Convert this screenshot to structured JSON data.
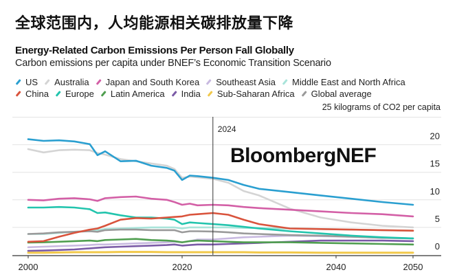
{
  "header": {
    "cn_title": "全球范围内，人均能源相关碳排放量下降",
    "title": "Energy-Related Carbon Emissions Per Person Fall Globally",
    "subtitle": "Carbon emissions per capita under BNEF’s Economic Transition Scenario",
    "unit_label": "25 kilograms of CO2 per capita",
    "brand": "BloombergNEF"
  },
  "chart_data": {
    "type": "line",
    "title": "Energy-Related Carbon Emissions Per Person Fall Globally",
    "subtitle": "Carbon emissions per capita under BNEF’s Economic Transition Scenario",
    "xlabel": "",
    "ylabel": "kilograms of CO2 per capita",
    "xlim": [
      1997,
      2053
    ],
    "ylim": [
      0,
      25
    ],
    "x_ticks": [
      2000,
      2020,
      2040,
      2050
    ],
    "x_tick_labels": [
      "2000",
      "2020",
      "2040",
      "2050"
    ],
    "y_ticks": [
      0,
      5,
      10,
      15,
      20,
      25
    ],
    "y_tick_labels": [
      "0",
      "5",
      "10",
      "15",
      "20",
      "25 kilograms of CO2 per capita"
    ],
    "y_axis_side": "right",
    "grid": true,
    "legend_position": "top",
    "annotations": [
      {
        "x": 2024,
        "label": "2024",
        "type": "vertical-line"
      }
    ],
    "x": [
      2000,
      2002,
      2004,
      2006,
      2008,
      2009,
      2010,
      2012,
      2014,
      2016,
      2018,
      2019,
      2020,
      2021,
      2022,
      2024,
      2026,
      2028,
      2030,
      2034,
      2038,
      2042,
      2046,
      2050
    ],
    "series": [
      {
        "name": "US",
        "color": "#2a9fd0",
        "values": [
          21.0,
          20.7,
          20.8,
          20.6,
          20.1,
          18.1,
          18.8,
          17.0,
          17.1,
          16.2,
          15.8,
          15.3,
          13.6,
          14.4,
          14.3,
          14.0,
          13.6,
          12.7,
          12.0,
          11.4,
          10.8,
          10.2,
          9.6,
          9.1
        ]
      },
      {
        "name": "Australia",
        "color": "#d4d4d4",
        "values": [
          19.2,
          18.6,
          19.0,
          19.1,
          19.0,
          18.5,
          18.2,
          17.4,
          17.0,
          16.6,
          16.2,
          15.6,
          14.0,
          14.2,
          14.1,
          13.8,
          13.1,
          11.6,
          10.8,
          8.4,
          6.8,
          5.9,
          5.3,
          5.0
        ]
      },
      {
        "name": "Japan and South Korea",
        "color": "#d35fa6",
        "values": [
          10.0,
          9.9,
          10.2,
          10.3,
          10.1,
          9.8,
          10.3,
          10.5,
          10.6,
          10.2,
          10.0,
          9.6,
          9.1,
          9.3,
          9.0,
          9.1,
          9.0,
          8.7,
          8.5,
          8.2,
          7.9,
          7.6,
          7.4,
          7.0
        ]
      },
      {
        "name": "Southeast Asia",
        "color": "#c8b9e0",
        "values": [
          1.4,
          1.5,
          1.6,
          1.7,
          1.8,
          1.9,
          1.9,
          2.0,
          2.1,
          2.2,
          2.3,
          2.4,
          2.3,
          2.5,
          2.8,
          2.8,
          3.0,
          3.2,
          3.3,
          3.5,
          3.4,
          3.3,
          3.1,
          3.0
        ]
      },
      {
        "name": "Middle East and North Africa",
        "color": "#a9e4da",
        "values": [
          3.8,
          3.8,
          4.0,
          4.2,
          4.4,
          4.5,
          4.7,
          4.8,
          4.9,
          5.0,
          5.0,
          5.0,
          4.8,
          5.0,
          5.0,
          5.0,
          5.0,
          4.9,
          4.9,
          4.8,
          4.7,
          4.6,
          4.5,
          4.4
        ]
      },
      {
        "name": "China",
        "color": "#d9533c",
        "values": [
          2.4,
          2.5,
          3.3,
          4.0,
          4.6,
          4.8,
          5.3,
          6.4,
          6.7,
          6.6,
          6.8,
          6.9,
          7.0,
          7.3,
          7.4,
          7.6,
          7.3,
          6.4,
          5.6,
          4.8,
          4.7,
          4.6,
          4.5,
          4.4
        ]
      },
      {
        "name": "Europe",
        "color": "#22c4ad",
        "values": [
          8.6,
          8.6,
          8.7,
          8.6,
          8.3,
          7.6,
          7.7,
          7.2,
          6.8,
          6.8,
          6.6,
          6.4,
          5.6,
          5.9,
          5.8,
          5.6,
          5.4,
          5.1,
          4.8,
          4.3,
          3.9,
          3.5,
          3.2,
          3.0
        ]
      },
      {
        "name": "Latin America",
        "color": "#4f9e4f",
        "values": [
          2.25,
          2.3,
          2.4,
          2.5,
          2.6,
          2.5,
          2.7,
          2.8,
          2.9,
          2.7,
          2.6,
          2.5,
          2.3,
          2.5,
          2.6,
          2.5,
          2.4,
          2.3,
          2.3,
          2.3,
          2.2,
          2.1,
          2.0,
          1.9
        ]
      },
      {
        "name": "India",
        "color": "#7a5aa6",
        "values": [
          0.75,
          0.8,
          0.9,
          1.0,
          1.2,
          1.3,
          1.4,
          1.5,
          1.6,
          1.7,
          1.8,
          1.9,
          1.7,
          1.8,
          1.9,
          1.9,
          2.0,
          2.1,
          2.2,
          2.4,
          2.6,
          2.6,
          2.6,
          2.5
        ]
      },
      {
        "name": "Sub-Saharan Africa",
        "color": "#f1c84a",
        "values": [
          0.4,
          0.4,
          0.45,
          0.5,
          0.5,
          0.5,
          0.5,
          0.55,
          0.55,
          0.55,
          0.5,
          0.5,
          0.5,
          0.5,
          0.5,
          0.5,
          0.5,
          0.5,
          0.45,
          0.45,
          0.4,
          0.4,
          0.4,
          0.4
        ]
      },
      {
        "name": "Global average",
        "color": "#9a9a9a",
        "values": [
          3.8,
          3.9,
          4.1,
          4.2,
          4.3,
          4.2,
          4.5,
          4.6,
          4.6,
          4.5,
          4.5,
          4.5,
          4.1,
          4.3,
          4.3,
          4.25,
          4.1,
          3.9,
          3.8,
          3.6,
          3.5,
          3.3,
          3.1,
          3.0
        ]
      }
    ]
  }
}
